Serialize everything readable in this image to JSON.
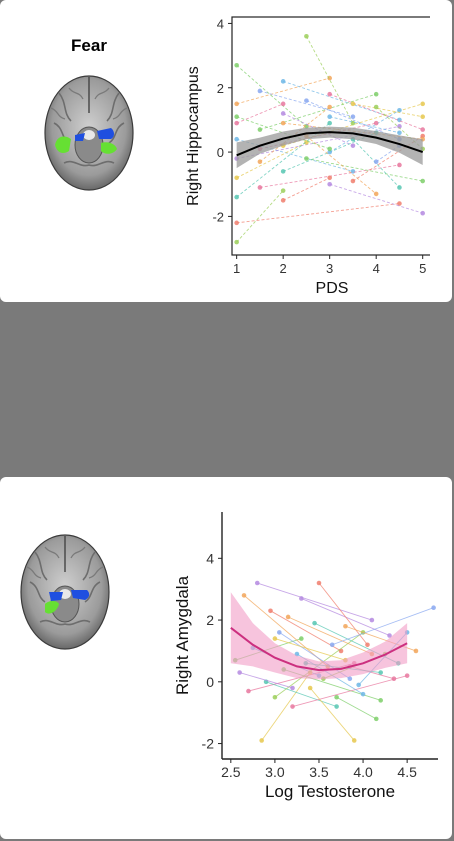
{
  "panels": [
    {
      "title": "Fear"
    },
    {
      "title": ""
    }
  ],
  "colors": {
    "background": "#7a7a7a",
    "left_region": "#66e033",
    "right_region": "#1f4fe0",
    "fit_line_top": "#000000",
    "ribbon_top": "#9a9a9a",
    "fit_line_bottom": "#cc2f7f",
    "ribbon_bottom": "#f19cc6"
  },
  "chart_data": [
    {
      "type": "line",
      "title": "",
      "xlabel": "PDS",
      "ylabel": "Right Hippocampus",
      "xlim": [
        0.9,
        5.2
      ],
      "ylim": [
        -3.2,
        4.2
      ],
      "xticks": [
        "1",
        "2",
        "3",
        "4",
        "5"
      ],
      "yticks": [
        "-2",
        "0",
        "2",
        "4"
      ],
      "grid": false,
      "legend": "none",
      "fit": {
        "description": "quadratic trend with confidence band",
        "x": [
          1,
          1.5,
          2,
          2.5,
          3,
          3.5,
          4,
          4.5,
          5
        ],
        "y": [
          -0.1,
          0.2,
          0.42,
          0.58,
          0.62,
          0.58,
          0.45,
          0.25,
          0.0
        ],
        "ci_lower": [
          -0.5,
          -0.05,
          0.2,
          0.4,
          0.45,
          0.4,
          0.25,
          -0.02,
          -0.4
        ],
        "ci_upper": [
          0.3,
          0.45,
          0.64,
          0.76,
          0.79,
          0.76,
          0.65,
          0.52,
          0.4
        ]
      },
      "subjects": [
        {
          "x": [
            1.0,
            2.5
          ],
          "y": [
            2.7,
            0.8
          ]
        },
        {
          "x": [
            1.0,
            3.0
          ],
          "y": [
            1.5,
            2.3
          ]
        },
        {
          "x": [
            1.0,
            2.0
          ],
          "y": [
            0.9,
            1.5
          ]
        },
        {
          "x": [
            1.0,
            3.5
          ],
          "y": [
            0.4,
            -0.6
          ]
        },
        {
          "x": [
            1.0,
            4.5
          ],
          "y": [
            -0.2,
            0.8
          ]
        },
        {
          "x": [
            1.0,
            2.5
          ],
          "y": [
            -0.8,
            0.3
          ]
        },
        {
          "x": [
            1.0,
            3.0
          ],
          "y": [
            -1.4,
            0.9
          ]
        },
        {
          "x": [
            1.0,
            4.5
          ],
          "y": [
            -2.2,
            -1.6
          ]
        },
        {
          "x": [
            1.0,
            2.0
          ],
          "y": [
            -2.8,
            -1.2
          ]
        },
        {
          "x": [
            1.5,
            3.5
          ],
          "y": [
            1.9,
            1.1
          ]
        },
        {
          "x": [
            1.5,
            4.0
          ],
          "y": [
            0.7,
            1.8
          ]
        },
        {
          "x": [
            1.5,
            3.0
          ],
          "y": [
            -0.3,
            1.4
          ]
        },
        {
          "x": [
            1.5,
            4.5
          ],
          "y": [
            -1.1,
            -0.4
          ]
        },
        {
          "x": [
            2.0,
            4.5
          ],
          "y": [
            2.2,
            1.0
          ]
        },
        {
          "x": [
            2.0,
            3.5
          ],
          "y": [
            1.2,
            0.2
          ]
        },
        {
          "x": [
            2.0,
            5.0
          ],
          "y": [
            0.2,
            1.5
          ]
        },
        {
          "x": [
            2.0,
            4.0
          ],
          "y": [
            -0.6,
            0.6
          ]
        },
        {
          "x": [
            2.0,
            3.0
          ],
          "y": [
            -1.5,
            -0.8
          ]
        },
        {
          "x": [
            2.5,
            3.5
          ],
          "y": [
            3.6,
            0.9
          ]
        },
        {
          "x": [
            2.5,
            4.5
          ],
          "y": [
            1.6,
            0.4
          ]
        },
        {
          "x": [
            2.5,
            5.0
          ],
          "y": [
            -0.2,
            -0.9
          ]
        },
        {
          "x": [
            2.5,
            4.0
          ],
          "y": [
            0.5,
            -1.3
          ]
        },
        {
          "x": [
            3.0,
            5.0
          ],
          "y": [
            1.8,
            0.7
          ]
        },
        {
          "x": [
            3.0,
            4.5
          ],
          "y": [
            0.0,
            1.3
          ]
        },
        {
          "x": [
            3.0,
            5.0
          ],
          "y": [
            -1.0,
            -1.9
          ]
        },
        {
          "x": [
            3.5,
            5.0
          ],
          "y": [
            1.5,
            1.1
          ]
        },
        {
          "x": [
            3.5,
            4.5
          ],
          "y": [
            0.4,
            -1.1
          ]
        },
        {
          "x": [
            3.5,
            5.0
          ],
          "y": [
            -0.9,
            0.5
          ]
        },
        {
          "x": [
            4.0,
            5.0
          ],
          "y": [
            1.4,
            0.1
          ]
        },
        {
          "x": [
            4.0,
            4.5
          ],
          "y": [
            -0.3,
            0.2
          ]
        },
        {
          "x": [
            1.0,
            3.0
          ],
          "y": [
            1.1,
            0.1
          ]
        },
        {
          "x": [
            2.0,
            5.0
          ],
          "y": [
            0.9,
            0.4
          ]
        },
        {
          "x": [
            1.5,
            4.0
          ],
          "y": [
            0.1,
            0.9
          ]
        },
        {
          "x": [
            3.0,
            4.5
          ],
          "y": [
            1.1,
            0.6
          ]
        }
      ]
    },
    {
      "type": "line",
      "title": "",
      "xlabel": "Log Testosterone",
      "ylabel": "Right Amygdala",
      "xlim": [
        2.4,
        4.85
      ],
      "ylim": [
        -2.5,
        5.5
      ],
      "xticks": [
        "2.5",
        "3.0",
        "3.5",
        "4.0",
        "4.5"
      ],
      "yticks": [
        "-2",
        "0",
        "2",
        "4"
      ],
      "grid": false,
      "legend": "none",
      "fit": {
        "description": "quadratic trend with confidence band",
        "x": [
          2.5,
          2.75,
          3.0,
          3.25,
          3.5,
          3.75,
          4.0,
          4.25,
          4.5
        ],
        "y": [
          1.75,
          1.2,
          0.78,
          0.5,
          0.38,
          0.42,
          0.6,
          0.88,
          1.25
        ],
        "ci_lower": [
          0.6,
          0.5,
          0.3,
          0.12,
          0.08,
          0.12,
          0.25,
          0.45,
          0.6
        ],
        "ci_upper": [
          2.9,
          1.9,
          1.25,
          0.85,
          0.66,
          0.7,
          0.95,
          1.3,
          1.9
        ]
      },
      "subjects": [
        {
          "x": [
            2.55,
            3.3
          ],
          "y": [
            0.7,
            1.4
          ]
        },
        {
          "x": [
            2.65,
            3.6
          ],
          "y": [
            2.8,
            0.5
          ]
        },
        {
          "x": [
            2.7,
            3.9
          ],
          "y": [
            -0.3,
            0.6
          ]
        },
        {
          "x": [
            2.75,
            3.5
          ],
          "y": [
            1.1,
            0.2
          ]
        },
        {
          "x": [
            2.8,
            4.1
          ],
          "y": [
            3.2,
            2.0
          ]
        },
        {
          "x": [
            2.85,
            3.4
          ],
          "y": [
            -1.9,
            0.3
          ]
        },
        {
          "x": [
            2.9,
            3.7
          ],
          "y": [
            0.0,
            -0.8
          ]
        },
        {
          "x": [
            2.95,
            3.75
          ],
          "y": [
            2.3,
            1.0
          ]
        },
        {
          "x": [
            3.0,
            4.0
          ],
          "y": [
            -0.5,
            1.6
          ]
        },
        {
          "x": [
            3.05,
            3.85
          ],
          "y": [
            1.6,
            0.1
          ]
        },
        {
          "x": [
            3.1,
            4.2
          ],
          "y": [
            0.4,
            -0.6
          ]
        },
        {
          "x": [
            3.15,
            4.1
          ],
          "y": [
            2.1,
            0.9
          ]
        },
        {
          "x": [
            3.2,
            4.5
          ],
          "y": [
            -0.8,
            0.2
          ]
        },
        {
          "x": [
            3.25,
            4.0
          ],
          "y": [
            0.9,
            -0.4
          ]
        },
        {
          "x": [
            3.3,
            4.3
          ],
          "y": [
            2.7,
            1.5
          ]
        },
        {
          "x": [
            3.4,
            3.9
          ],
          "y": [
            -0.2,
            -1.9
          ]
        },
        {
          "x": [
            3.45,
            4.4
          ],
          "y": [
            1.9,
            0.6
          ]
        },
        {
          "x": [
            3.5,
            4.05
          ],
          "y": [
            3.2,
            1.2
          ]
        },
        {
          "x": [
            3.55,
            4.25
          ],
          "y": [
            0.1,
            0.9
          ]
        },
        {
          "x": [
            3.65,
            4.8
          ],
          "y": [
            1.2,
            2.4
          ]
        },
        {
          "x": [
            3.7,
            4.15
          ],
          "y": [
            -0.5,
            -1.2
          ]
        },
        {
          "x": [
            3.8,
            4.6
          ],
          "y": [
            1.8,
            1.0
          ]
        },
        {
          "x": [
            3.85,
            4.35
          ],
          "y": [
            0.5,
            0.1
          ]
        },
        {
          "x": [
            3.95,
            4.5
          ],
          "y": [
            -0.1,
            1.6
          ]
        },
        {
          "x": [
            2.6,
            3.2
          ],
          "y": [
            0.3,
            -0.2
          ]
        },
        {
          "x": [
            3.0,
            3.8
          ],
          "y": [
            1.4,
            0.7
          ]
        },
        {
          "x": [
            3.35,
            4.2
          ],
          "y": [
            0.6,
            0.3
          ]
        }
      ]
    }
  ]
}
